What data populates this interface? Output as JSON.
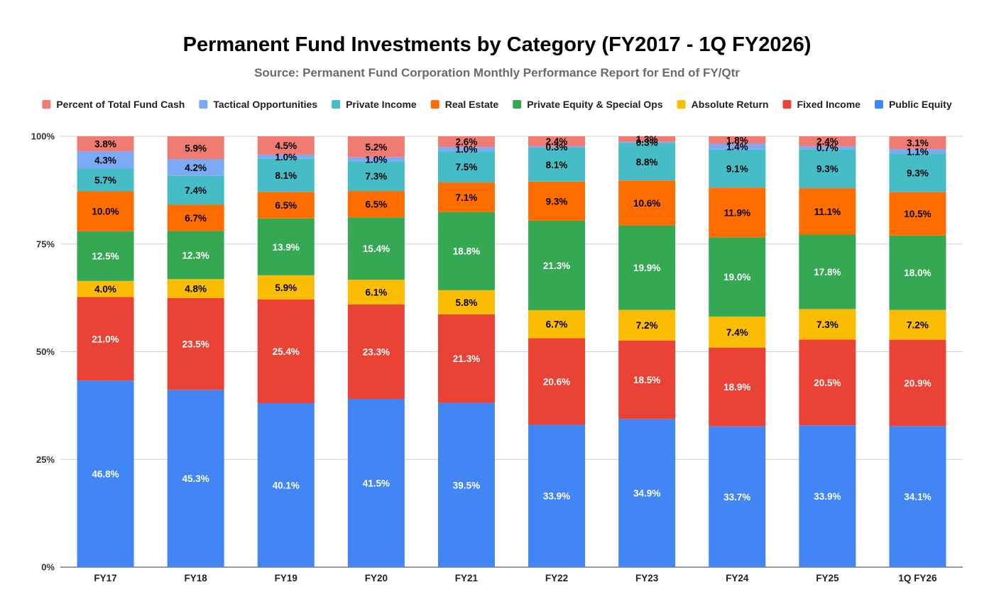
{
  "chart_data": {
    "type": "bar",
    "stacked": true,
    "normalized": true,
    "title": "Permanent Fund Investments by Category (FY2017 - 1Q FY2026)",
    "subtitle": "Source: Permanent Fund Corporation Monthly Performance Report for End of FY/Qtr",
    "legend_position": "top",
    "grid": true,
    "ylim": [
      0,
      100
    ],
    "yticks": [
      "0%",
      "25%",
      "50%",
      "75%",
      "100%"
    ],
    "categories": [
      "FY17",
      "FY18",
      "FY19",
      "FY20",
      "FY21",
      "FY22",
      "FY23",
      "FY24",
      "FY25",
      "1Q FY26"
    ],
    "legend_order": [
      "Percent of Total Fund Cash",
      "Tactical Opportunities",
      "Private Income",
      "Real Estate",
      "Private Equity & Special Ops",
      "Absolute Return",
      "Fixed Income",
      "Public Equity"
    ],
    "series": [
      {
        "name": "Public Equity",
        "color": "#4285F4",
        "label_color": "#ffffff",
        "values": [
          46.8,
          45.3,
          40.1,
          41.5,
          39.5,
          33.9,
          34.9,
          33.7,
          33.9,
          34.1
        ],
        "labels": [
          "46.8%",
          "45.3%",
          "40.1%",
          "41.5%",
          "39.5%",
          "33.9%",
          "34.9%",
          "33.7%",
          "33.9%",
          "34.1%"
        ]
      },
      {
        "name": "Fixed Income",
        "color": "#EA4335",
        "label_color": "#ffffff",
        "values": [
          21.0,
          23.5,
          25.4,
          23.3,
          21.3,
          20.6,
          18.5,
          18.9,
          20.5,
          20.9
        ],
        "labels": [
          "21.0%",
          "23.5%",
          "25.4%",
          "23.3%",
          "21.3%",
          "20.6%",
          "18.5%",
          "18.9%",
          "20.5%",
          "20.9%"
        ]
      },
      {
        "name": "Absolute Return",
        "color": "#FBBC04",
        "label_color": "#000000",
        "values": [
          4.0,
          4.8,
          5.9,
          6.1,
          5.8,
          6.7,
          7.2,
          7.4,
          7.3,
          7.2
        ],
        "labels": [
          "4.0%",
          "4.8%",
          "5.9%",
          "6.1%",
          "5.8%",
          "6.7%",
          "7.2%",
          "7.4%",
          "7.3%",
          "7.2%"
        ]
      },
      {
        "name": "Private Equity & Special Ops",
        "color": "#34A853",
        "label_color": "#ffffff",
        "values": [
          12.5,
          12.3,
          13.9,
          15.4,
          18.8,
          21.3,
          19.9,
          19.0,
          17.8,
          18.0
        ],
        "labels": [
          "12.5%",
          "12.3%",
          "13.9%",
          "15.4%",
          "18.8%",
          "21.3%",
          "19.9%",
          "19.0%",
          "17.8%",
          "18.0%"
        ]
      },
      {
        "name": "Real Estate",
        "color": "#FF6D01",
        "label_color": "#000000",
        "values": [
          10.0,
          6.7,
          6.5,
          6.5,
          7.1,
          9.3,
          10.6,
          11.9,
          11.1,
          10.5
        ],
        "labels": [
          "10.0%",
          "6.7%",
          "6.5%",
          "6.5%",
          "7.1%",
          "9.3%",
          "10.6%",
          "11.9%",
          "11.1%",
          "10.5%"
        ]
      },
      {
        "name": "Private Income",
        "color": "#46BDC6",
        "label_color": "#000000",
        "values": [
          5.7,
          7.4,
          8.1,
          7.3,
          7.5,
          8.1,
          8.8,
          9.1,
          9.3,
          9.3
        ],
        "labels": [
          "5.7%",
          "7.4%",
          "8.1%",
          "7.3%",
          "7.5%",
          "8.1%",
          "8.8%",
          "9.1%",
          "9.3%",
          "9.3%"
        ]
      },
      {
        "name": "Tactical Opportunities",
        "color": "#7BAAF7",
        "label_color": "#000000",
        "values": [
          4.3,
          4.2,
          1.0,
          1.0,
          1.0,
          0.3,
          0.3,
          1.4,
          0.7,
          1.1
        ],
        "labels": [
          "4.3%",
          "4.2%",
          "1.0%",
          "1.0%",
          "1.0%",
          "0.3%",
          "0.3%",
          "1.4%",
          "0.7%",
          "1.1%"
        ]
      },
      {
        "name": "Percent of Total Fund Cash",
        "color": "#F07B72",
        "label_color": "#000000",
        "values": [
          3.8,
          5.9,
          4.5,
          5.2,
          2.6,
          2.4,
          1.3,
          1.8,
          2.4,
          3.1
        ],
        "labels": [
          "3.8%",
          "5.9%",
          "4.5%",
          "5.2%",
          "2.6%",
          "2.4%",
          "1.3%",
          "1.8%",
          "2.4%",
          "3.1%"
        ]
      }
    ]
  }
}
